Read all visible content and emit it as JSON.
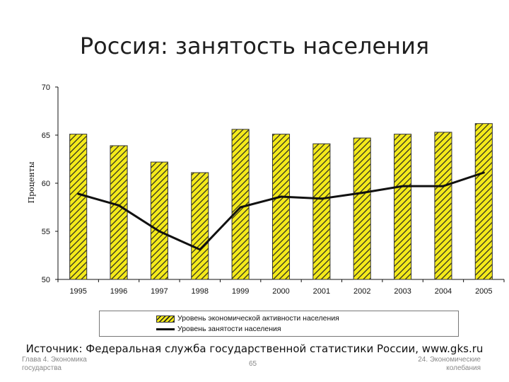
{
  "slide": {
    "title": "Россия: занятость населения",
    "source": "Источник: Федеральная служба государственной статистики России, www.gks.ru",
    "footer_left_1": "Глава 4. Экономика",
    "footer_left_2": "государства",
    "page_number": "65",
    "footer_right_1": "24. Экономические",
    "footer_right_2": "колебания"
  },
  "colors": {
    "bar_fill": "#f4ea1a",
    "bar_hatch": "#222222",
    "line": "#111111"
  },
  "chart_data": {
    "type": "bar",
    "title": "",
    "xlabel": "",
    "ylabel": "Проценты",
    "ylim": [
      50,
      70
    ],
    "yticks": [
      50,
      55,
      60,
      65,
      70
    ],
    "grid": false,
    "legend_position": "bottom",
    "categories": [
      "1995",
      "1996",
      "1997",
      "1998",
      "1999",
      "2000",
      "2001",
      "2002",
      "2003",
      "2004",
      "2005"
    ],
    "series": [
      {
        "name": "Уровень экономической активности населения",
        "kind": "bar",
        "values": [
          65.1,
          63.9,
          62.2,
          61.1,
          65.6,
          65.1,
          64.1,
          64.7,
          65.1,
          65.3,
          66.2
        ]
      },
      {
        "name": "Уровень занятости населения",
        "kind": "line",
        "values": [
          58.9,
          57.7,
          55.0,
          53.1,
          57.5,
          58.6,
          58.4,
          59.0,
          59.7,
          59.7,
          61.1
        ]
      }
    ]
  }
}
